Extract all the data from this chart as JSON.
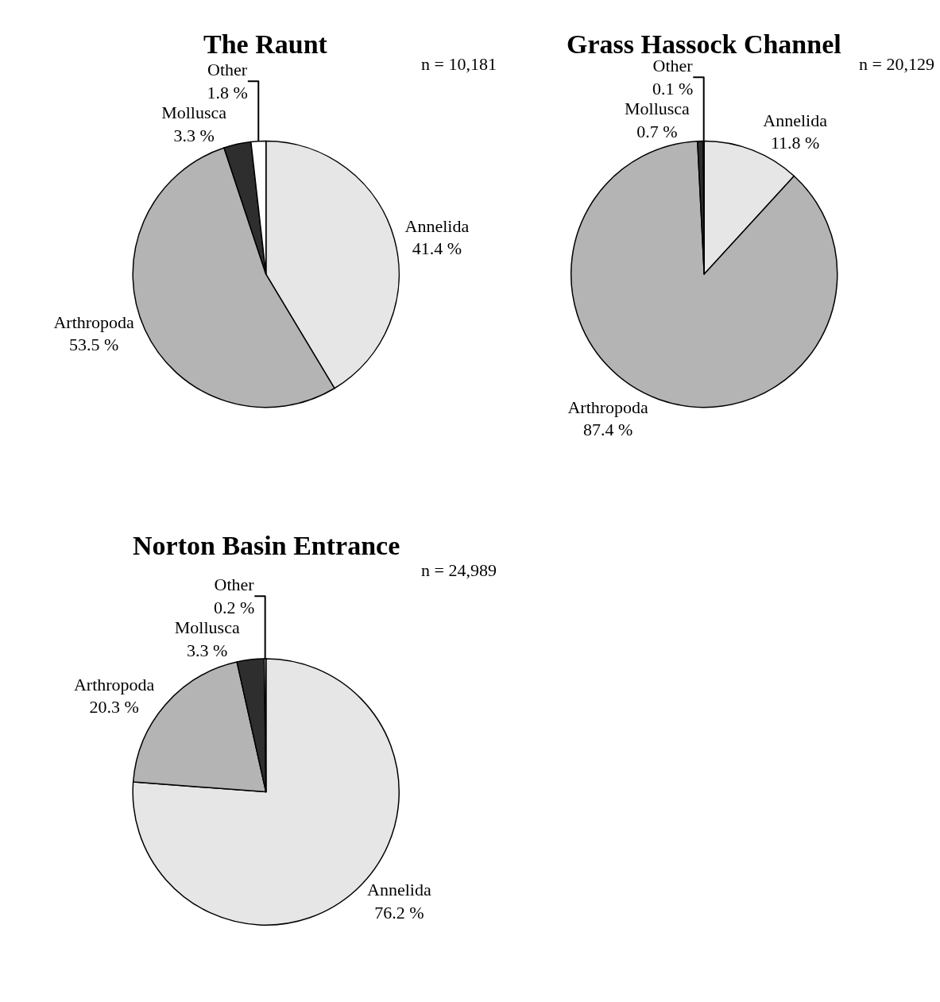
{
  "chart_data": [
    {
      "type": "pie",
      "title": "The Raunt",
      "categories": [
        "Annelida",
        "Arthropoda",
        "Mollusca",
        "Other"
      ],
      "values": [
        41.4,
        53.5,
        3.3,
        1.8
      ],
      "value_labels": [
        "41.4 %",
        "53.5 %",
        "3.3 %",
        "1.8 %"
      ],
      "colors": [
        "#e6e6e6",
        "#b4b4b4",
        "#2e2e2e",
        "#ffffff"
      ],
      "annotations": [
        "n = 10,181"
      ]
    },
    {
      "type": "pie",
      "title": "Grass Hassock Channel",
      "categories": [
        "Annelida",
        "Arthropoda",
        "Mollusca",
        "Other"
      ],
      "values": [
        11.8,
        87.4,
        0.7,
        0.1
      ],
      "value_labels": [
        "11.8 %",
        "87.4 %",
        "0.7 %",
        "0.1 %"
      ],
      "colors": [
        "#e6e6e6",
        "#b4b4b4",
        "#2e2e2e",
        "#ffffff"
      ],
      "annotations": [
        "n = 20,129"
      ]
    },
    {
      "type": "pie",
      "title": "Norton Basin Entrance",
      "categories": [
        "Annelida",
        "Arthropoda",
        "Mollusca",
        "Other"
      ],
      "values": [
        76.2,
        20.3,
        3.3,
        0.2
      ],
      "value_labels": [
        "76.2 %",
        "20.3 %",
        "3.3 %",
        "0.2 %"
      ],
      "colors": [
        "#e6e6e6",
        "#b4b4b4",
        "#2e2e2e",
        "#ffffff"
      ],
      "annotations": [
        "n = 24,989"
      ]
    }
  ]
}
